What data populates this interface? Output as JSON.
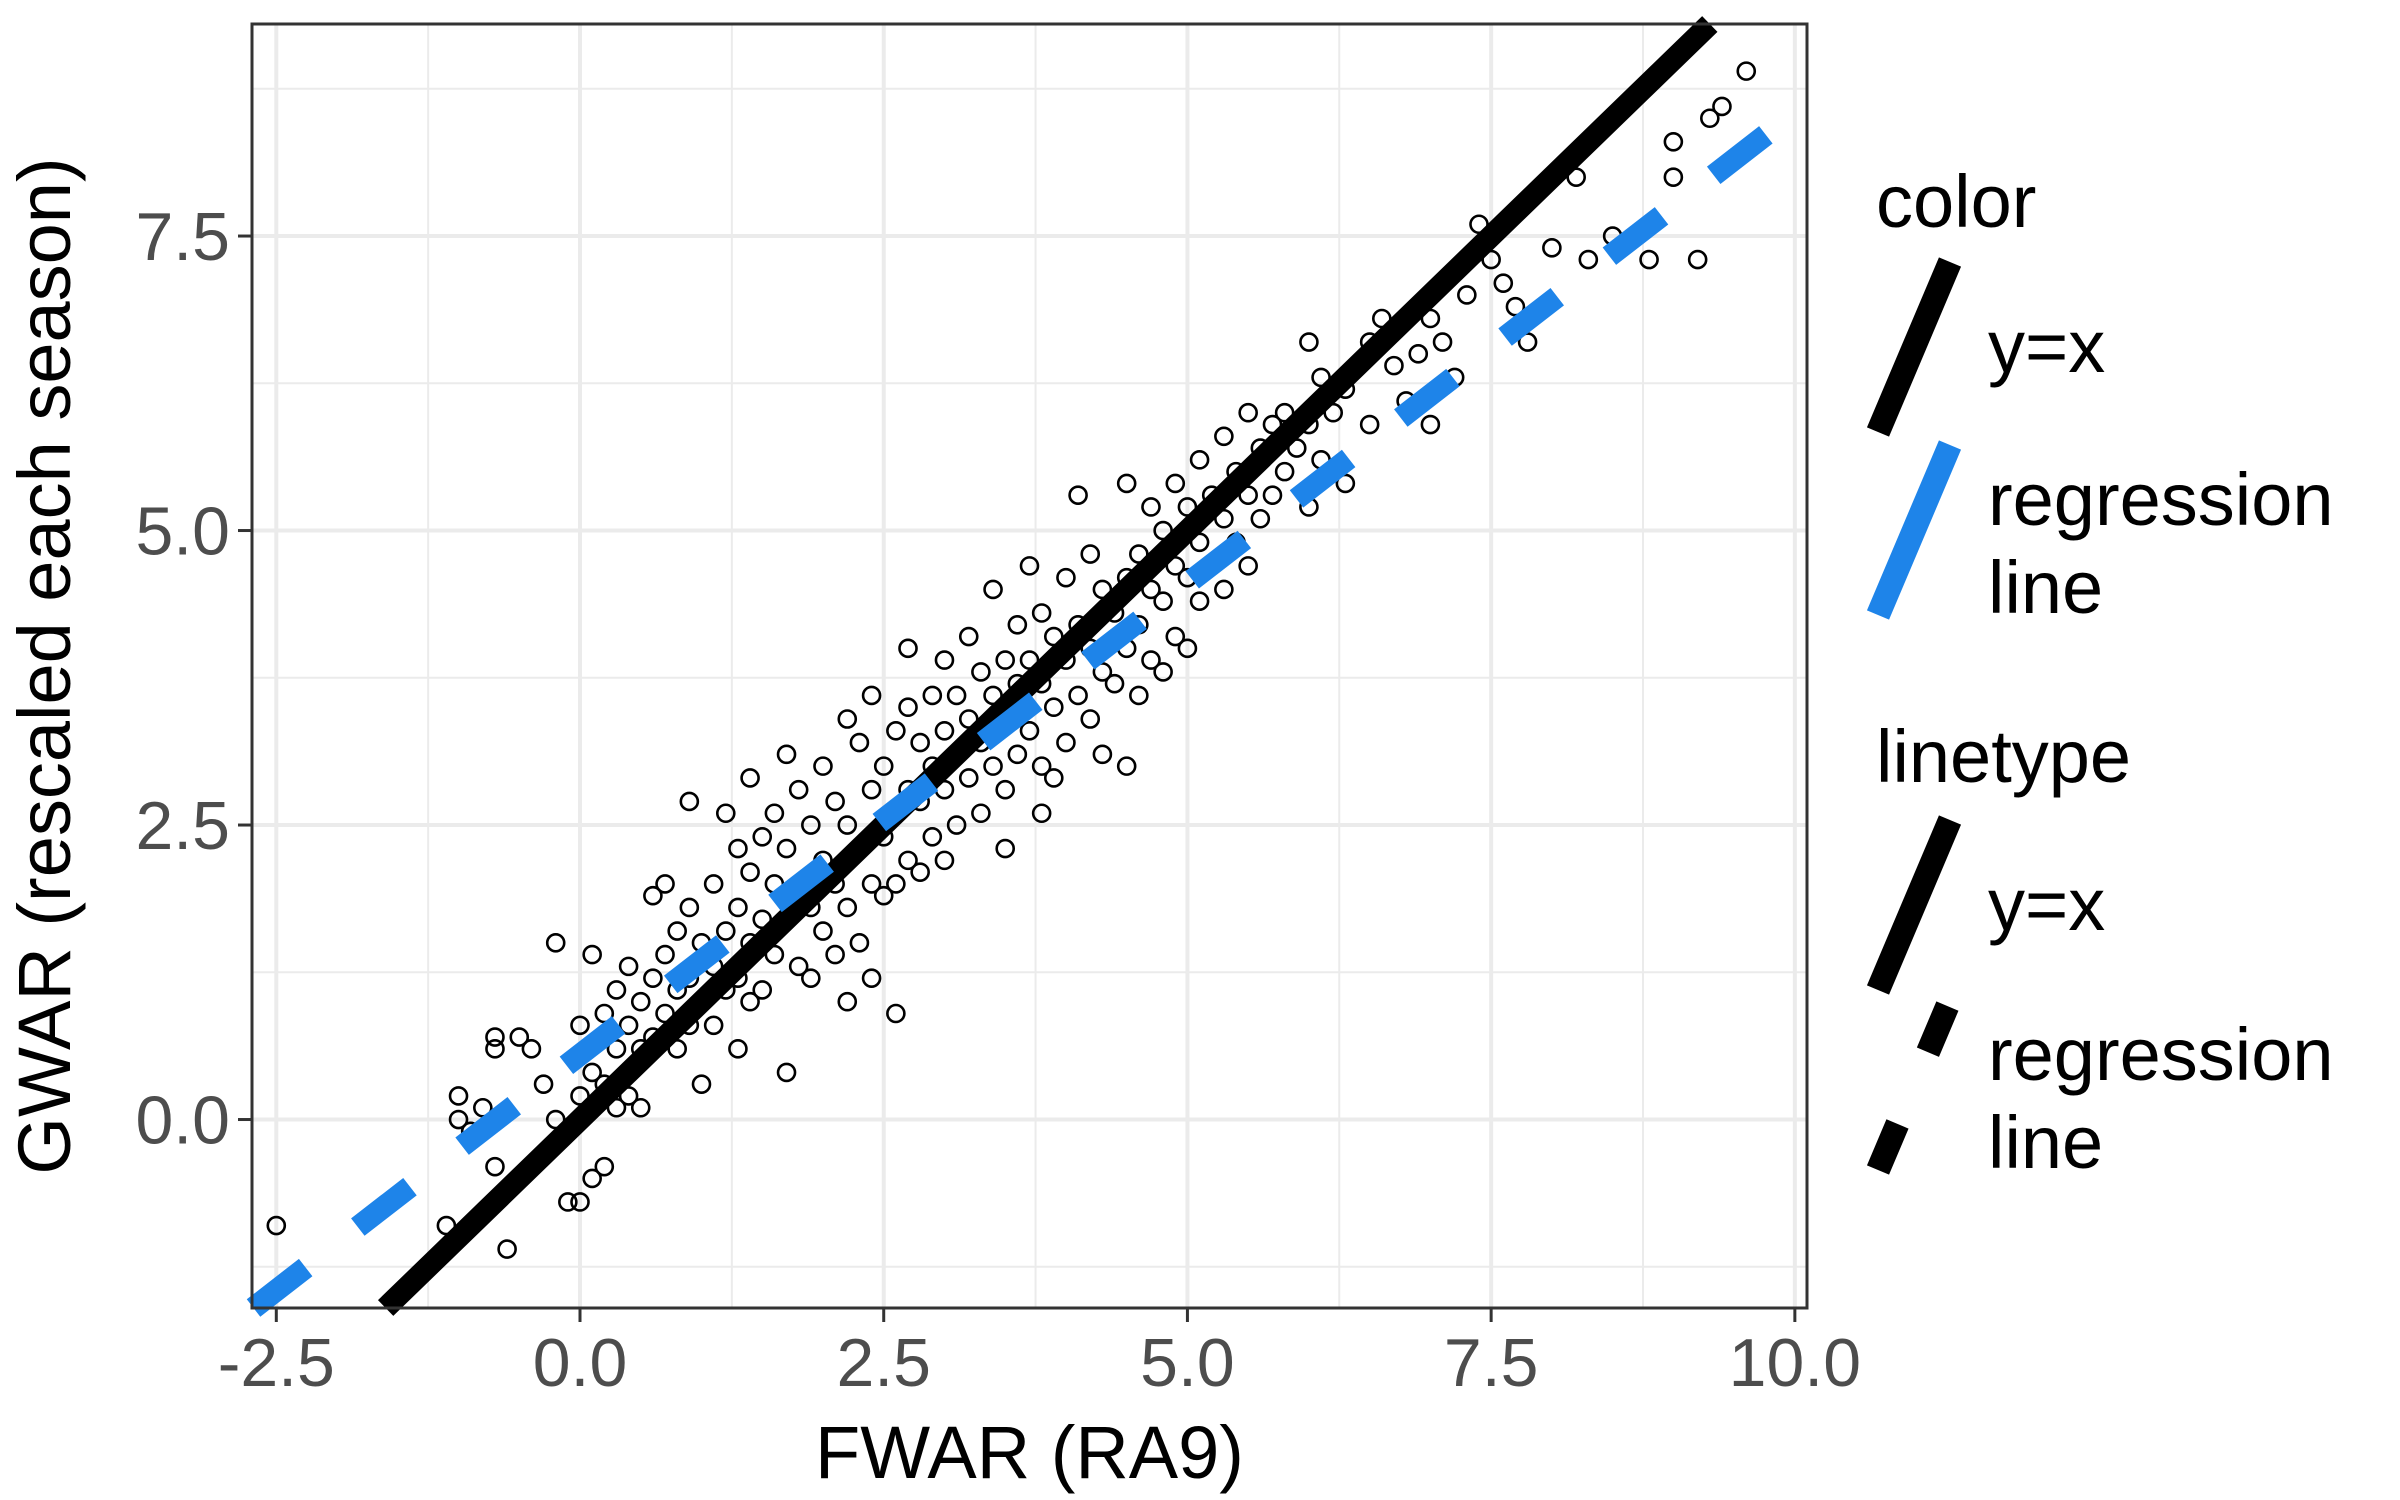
{
  "chart_data": {
    "type": "scatter",
    "xlabel": "FWAR (RA9)",
    "ylabel": "GWAR (rescaled each season)",
    "xlim": [
      -2.7,
      10.1
    ],
    "ylim": [
      -1.6,
      9.3
    ],
    "x_ticks": [
      -2.5,
      0.0,
      2.5,
      5.0,
      7.5,
      10.0
    ],
    "x_tick_labels": [
      "-2.5",
      "0.0",
      "2.5",
      "5.0",
      "7.5",
      "10.0"
    ],
    "y_ticks": [
      0.0,
      2.5,
      5.0,
      7.5
    ],
    "y_tick_labels": [
      "0.0",
      "2.5",
      "5.0",
      "7.5"
    ],
    "grid": true,
    "colors": {
      "points": "#000000",
      "identity_line": "#000000",
      "regression_line": "#1e84e9",
      "grid": "#ebebeb",
      "panel_border": "#333333",
      "tick_text": "#4d4d4d"
    },
    "lines": [
      {
        "name": "y=x",
        "slope": 1.0,
        "intercept": 0.0,
        "color": "#000000",
        "linetype": "solid"
      },
      {
        "name": "regression line",
        "slope": 0.8,
        "intercept": 0.55,
        "color": "#1e84e9",
        "linetype": "dashed"
      }
    ],
    "legend": {
      "position": "right",
      "groups": [
        {
          "title": "color",
          "entries": [
            {
              "label_lines": [
                "y=x"
              ],
              "color": "#000000",
              "linetype": "solid"
            },
            {
              "label_lines": [
                "regression",
                "line"
              ],
              "color": "#1e84e9",
              "linetype": "solid"
            }
          ]
        },
        {
          "title": "linetype",
          "entries": [
            {
              "label_lines": [
                "y=x"
              ],
              "color": "#000000",
              "linetype": "solid"
            },
            {
              "label_lines": [
                "regression",
                "line"
              ],
              "color": "#000000",
              "linetype": "dashed"
            }
          ]
        }
      ]
    },
    "points": [
      [
        -2.5,
        -0.9
      ],
      [
        -1.1,
        -0.9
      ],
      [
        -1.0,
        0.2
      ],
      [
        -1.0,
        0.0
      ],
      [
        -0.9,
        -0.1
      ],
      [
        -0.8,
        0.1
      ],
      [
        -0.7,
        0.7
      ],
      [
        -0.7,
        0.6
      ],
      [
        -0.7,
        -0.4
      ],
      [
        -0.6,
        -1.1
      ],
      [
        -0.5,
        0.7
      ],
      [
        -0.4,
        0.6
      ],
      [
        -0.3,
        0.3
      ],
      [
        -0.2,
        1.5
      ],
      [
        -0.2,
        0.0
      ],
      [
        -0.1,
        -0.7
      ],
      [
        0.0,
        0.8
      ],
      [
        0.0,
        0.2
      ],
      [
        0.0,
        -0.7
      ],
      [
        0.1,
        1.4
      ],
      [
        0.1,
        0.4
      ],
      [
        0.1,
        -0.5
      ],
      [
        0.2,
        0.9
      ],
      [
        0.2,
        0.3
      ],
      [
        0.2,
        -0.4
      ],
      [
        0.3,
        1.1
      ],
      [
        0.3,
        0.6
      ],
      [
        0.3,
        0.1
      ],
      [
        0.4,
        1.3
      ],
      [
        0.4,
        0.8
      ],
      [
        0.4,
        0.2
      ],
      [
        0.5,
        1.0
      ],
      [
        0.5,
        0.6
      ],
      [
        0.5,
        0.1
      ],
      [
        0.6,
        1.9
      ],
      [
        0.6,
        1.2
      ],
      [
        0.6,
        0.7
      ],
      [
        0.7,
        2.0
      ],
      [
        0.7,
        1.4
      ],
      [
        0.7,
        0.9
      ],
      [
        0.8,
        1.6
      ],
      [
        0.8,
        1.1
      ],
      [
        0.8,
        0.6
      ],
      [
        0.9,
        2.7
      ],
      [
        0.9,
        1.8
      ],
      [
        0.9,
        1.2
      ],
      [
        0.9,
        0.8
      ],
      [
        1.0,
        1.5
      ],
      [
        1.0,
        1.0
      ],
      [
        1.0,
        0.3
      ],
      [
        1.1,
        2.0
      ],
      [
        1.1,
        1.3
      ],
      [
        1.1,
        0.8
      ],
      [
        1.2,
        2.6
      ],
      [
        1.2,
        1.6
      ],
      [
        1.2,
        1.1
      ],
      [
        1.3,
        2.3
      ],
      [
        1.3,
        1.8
      ],
      [
        1.3,
        1.2
      ],
      [
        1.3,
        0.6
      ],
      [
        1.4,
        2.9
      ],
      [
        1.4,
        2.1
      ],
      [
        1.4,
        1.5
      ],
      [
        1.4,
        1.0
      ],
      [
        1.5,
        2.4
      ],
      [
        1.5,
        1.7
      ],
      [
        1.5,
        1.1
      ],
      [
        1.6,
        2.6
      ],
      [
        1.6,
        2.0
      ],
      [
        1.6,
        1.4
      ],
      [
        1.7,
        3.1
      ],
      [
        1.7,
        2.3
      ],
      [
        1.7,
        1.7
      ],
      [
        1.7,
        0.4
      ],
      [
        1.8,
        2.8
      ],
      [
        1.8,
        2.0
      ],
      [
        1.8,
        1.3
      ],
      [
        1.9,
        2.5
      ],
      [
        1.9,
        1.8
      ],
      [
        1.9,
        1.2
      ],
      [
        2.0,
        3.0
      ],
      [
        2.0,
        2.2
      ],
      [
        2.0,
        1.6
      ],
      [
        2.1,
        2.7
      ],
      [
        2.1,
        2.0
      ],
      [
        2.1,
        1.4
      ],
      [
        2.2,
        3.4
      ],
      [
        2.2,
        2.5
      ],
      [
        2.2,
        1.8
      ],
      [
        2.2,
        1.0
      ],
      [
        2.3,
        3.2
      ],
      [
        2.3,
        2.3
      ],
      [
        2.3,
        1.5
      ],
      [
        2.4,
        3.6
      ],
      [
        2.4,
        2.8
      ],
      [
        2.4,
        2.0
      ],
      [
        2.4,
        1.2
      ],
      [
        2.5,
        3.0
      ],
      [
        2.5,
        2.4
      ],
      [
        2.5,
        1.9
      ],
      [
        2.6,
        3.3
      ],
      [
        2.6,
        2.6
      ],
      [
        2.6,
        2.0
      ],
      [
        2.6,
        0.9
      ],
      [
        2.7,
        4.0
      ],
      [
        2.7,
        3.5
      ],
      [
        2.7,
        2.8
      ],
      [
        2.7,
        2.2
      ],
      [
        2.8,
        3.2
      ],
      [
        2.8,
        2.7
      ],
      [
        2.8,
        2.1
      ],
      [
        2.9,
        3.6
      ],
      [
        2.9,
        3.0
      ],
      [
        2.9,
        2.4
      ],
      [
        3.0,
        3.9
      ],
      [
        3.0,
        3.3
      ],
      [
        3.0,
        2.8
      ],
      [
        3.0,
        2.2
      ],
      [
        3.1,
        3.6
      ],
      [
        3.1,
        3.1
      ],
      [
        3.1,
        2.5
      ],
      [
        3.2,
        4.1
      ],
      [
        3.2,
        3.4
      ],
      [
        3.2,
        2.9
      ],
      [
        3.3,
        3.8
      ],
      [
        3.3,
        3.2
      ],
      [
        3.3,
        2.6
      ],
      [
        3.4,
        4.5
      ],
      [
        3.4,
        3.6
      ],
      [
        3.4,
        3.0
      ],
      [
        3.5,
        3.9
      ],
      [
        3.5,
        3.4
      ],
      [
        3.5,
        2.8
      ],
      [
        3.5,
        2.3
      ],
      [
        3.6,
        4.2
      ],
      [
        3.6,
        3.7
      ],
      [
        3.6,
        3.1
      ],
      [
        3.7,
        4.7
      ],
      [
        3.7,
        3.9
      ],
      [
        3.7,
        3.3
      ],
      [
        3.8,
        4.3
      ],
      [
        3.8,
        3.7
      ],
      [
        3.8,
        3.0
      ],
      [
        3.8,
        2.6
      ],
      [
        3.9,
        4.1
      ],
      [
        3.9,
        3.5
      ],
      [
        3.9,
        2.9
      ],
      [
        4.0,
        4.6
      ],
      [
        4.0,
        3.9
      ],
      [
        4.0,
        3.2
      ],
      [
        4.1,
        5.3
      ],
      [
        4.1,
        4.2
      ],
      [
        4.1,
        3.6
      ],
      [
        4.2,
        4.8
      ],
      [
        4.2,
        4.0
      ],
      [
        4.2,
        3.4
      ],
      [
        4.3,
        4.5
      ],
      [
        4.3,
        3.8
      ],
      [
        4.3,
        3.1
      ],
      [
        4.4,
        4.3
      ],
      [
        4.4,
        3.7
      ],
      [
        4.5,
        5.4
      ],
      [
        4.5,
        4.6
      ],
      [
        4.5,
        4.0
      ],
      [
        4.5,
        3.0
      ],
      [
        4.6,
        4.8
      ],
      [
        4.6,
        4.2
      ],
      [
        4.6,
        3.6
      ],
      [
        4.7,
        5.2
      ],
      [
        4.7,
        4.5
      ],
      [
        4.7,
        3.9
      ],
      [
        4.8,
        5.0
      ],
      [
        4.8,
        4.4
      ],
      [
        4.8,
        3.8
      ],
      [
        4.9,
        5.4
      ],
      [
        4.9,
        4.7
      ],
      [
        4.9,
        4.1
      ],
      [
        5.0,
        5.2
      ],
      [
        5.0,
        4.6
      ],
      [
        5.0,
        4.0
      ],
      [
        5.1,
        5.6
      ],
      [
        5.1,
        4.9
      ],
      [
        5.1,
        4.4
      ],
      [
        5.2,
        5.3
      ],
      [
        5.2,
        4.7
      ],
      [
        5.3,
        5.8
      ],
      [
        5.3,
        5.1
      ],
      [
        5.3,
        4.5
      ],
      [
        5.4,
        5.5
      ],
      [
        5.4,
        4.9
      ],
      [
        5.5,
        6.0
      ],
      [
        5.5,
        5.3
      ],
      [
        5.5,
        4.7
      ],
      [
        5.6,
        5.7
      ],
      [
        5.6,
        5.1
      ],
      [
        5.7,
        5.9
      ],
      [
        5.7,
        5.3
      ],
      [
        5.8,
        6.0
      ],
      [
        5.8,
        5.5
      ],
      [
        5.9,
        5.7
      ],
      [
        6.0,
        6.6
      ],
      [
        6.0,
        5.9
      ],
      [
        6.0,
        5.2
      ],
      [
        6.1,
        6.3
      ],
      [
        6.1,
        5.6
      ],
      [
        6.2,
        6.0
      ],
      [
        6.3,
        6.2
      ],
      [
        6.3,
        5.4
      ],
      [
        6.4,
        6.4
      ],
      [
        6.5,
        6.6
      ],
      [
        6.5,
        5.9
      ],
      [
        6.6,
        6.8
      ],
      [
        6.7,
        6.4
      ],
      [
        6.8,
        6.1
      ],
      [
        6.9,
        6.5
      ],
      [
        7.0,
        6.8
      ],
      [
        7.0,
        5.9
      ],
      [
        7.1,
        6.6
      ],
      [
        7.2,
        6.3
      ],
      [
        7.3,
        7.0
      ],
      [
        7.4,
        7.6
      ],
      [
        7.5,
        7.3
      ],
      [
        7.6,
        7.1
      ],
      [
        7.7,
        6.9
      ],
      [
        7.8,
        6.6
      ],
      [
        8.0,
        7.4
      ],
      [
        8.2,
        8.0
      ],
      [
        8.3,
        7.3
      ],
      [
        8.5,
        7.5
      ],
      [
        8.8,
        7.3
      ],
      [
        9.0,
        8.3
      ],
      [
        9.0,
        8.0
      ],
      [
        9.2,
        7.3
      ],
      [
        9.3,
        8.5
      ],
      [
        9.4,
        8.6
      ],
      [
        9.6,
        8.9
      ]
    ]
  }
}
